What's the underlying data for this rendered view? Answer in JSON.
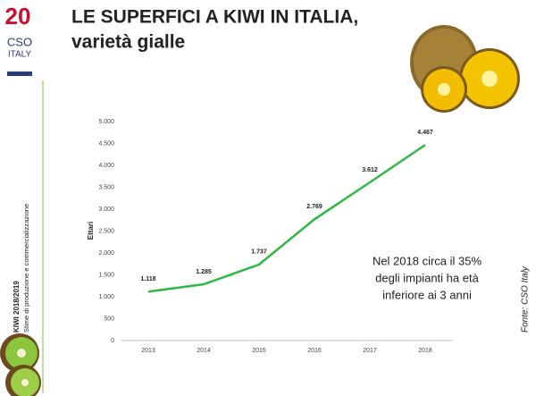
{
  "chart_data": {
    "type": "line",
    "title": [
      "LE SUPERFICI A KIWI IN ITALIA,",
      "varietà  gialle"
    ],
    "categories": [
      "2013",
      "2014",
      "2015",
      "2016",
      "2017",
      "2018"
    ],
    "series": [
      {
        "name": "Ettari",
        "color": "#2eb844",
        "values": [
          1118,
          1285,
          1737,
          2769,
          3612,
          4467
        ],
        "value_labels": [
          "1.118",
          "1.285",
          "1.737",
          "2.769",
          "3.612",
          "4.467"
        ]
      }
    ],
    "y_label": "Ettari",
    "ylim": [
      0,
      5000
    ],
    "yticks": [
      0,
      500,
      {
        "value": 1000,
        "label": "1.000"
      },
      {
        "value": 1500,
        "label": "1.500"
      },
      {
        "value": 2000,
        "label": "2.000"
      },
      {
        "value": 2500,
        "label": "2.500"
      },
      {
        "value": 3000,
        "label": "3.000"
      },
      {
        "value": 3500,
        "label": "3.500"
      },
      {
        "value": 4000,
        "label": "4.000"
      },
      {
        "value": 4500,
        "label": "4.500"
      },
      {
        "value": 5000,
        "label": "5.000"
      }
    ],
    "annotation": [
      "Nel 2018 circa il 35%",
      "degli impianti ha età",
      "inferiore ai 3 anni"
    ],
    "source": "Fonte: CSO Italy"
  },
  "slide": {
    "logo": [
      "20",
      "CSO",
      "ITALY"
    ],
    "sidebar": [
      "KIWI 2018/2019",
      "Stime di produzione e commercializzazione"
    ]
  }
}
